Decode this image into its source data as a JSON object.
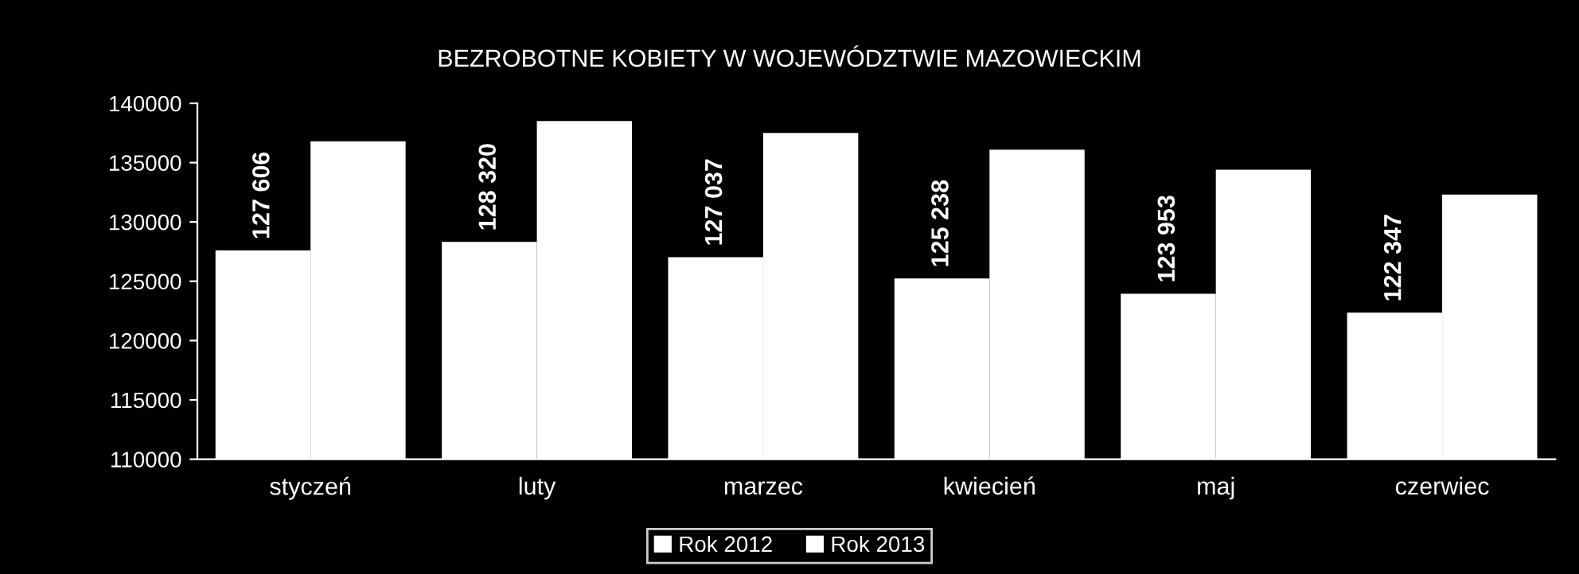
{
  "chart_data": {
    "type": "bar",
    "title": "BEZROBOTNE KOBIETY W WOJEWÓDZTWIE MAZOWIECKIM",
    "categories": [
      "styczeń",
      "luty",
      "marzec",
      "kwiecień",
      "maj",
      "czerwiec"
    ],
    "series": [
      {
        "name": "Rok 2012",
        "color": "#ffffff",
        "values": [
          127606,
          128320,
          127037,
          125238,
          123953,
          122347
        ],
        "value_labels": [
          "127 606",
          "128 320",
          "127 037",
          "125 238",
          "123 953",
          "122 347"
        ]
      },
      {
        "name": "Rok 2013",
        "color": "#ffffff",
        "values": [
          136800,
          138500,
          137500,
          136100,
          134400,
          132300
        ]
      }
    ],
    "ylim": [
      110000,
      140000
    ],
    "yticks": [
      110000,
      115000,
      120000,
      125000,
      130000,
      135000,
      140000
    ],
    "grid": false,
    "legend": "bottom"
  }
}
